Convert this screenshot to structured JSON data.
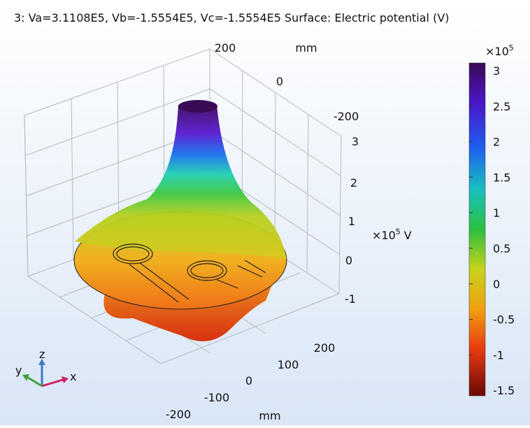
{
  "title": "3: Va=3.1108E5, Vb=-1.5554E5, Vc=-1.5554E5  Surface: Electric potential (V)",
  "colorbar": {
    "exponent_base": "×10",
    "exponent": "5",
    "ticks": [
      "3",
      "2.5",
      "2",
      "1.5",
      "1",
      "0.5",
      "0",
      "-0.5",
      "-1",
      "-1.5"
    ]
  },
  "axes": {
    "y_ticks": [
      "200",
      "0",
      "-200"
    ],
    "y_unit": "mm",
    "z_ticks": [
      "3",
      "2",
      "1",
      "0",
      "-1"
    ],
    "z_label_base": "×10",
    "z_label_exponent": "5",
    "z_label_unit": "V",
    "x_ticks": [
      "200",
      "100",
      "0",
      "-100",
      "-200"
    ],
    "x_unit": "mm"
  },
  "triad": {
    "z": "z",
    "y": "y",
    "x": "x"
  }
}
